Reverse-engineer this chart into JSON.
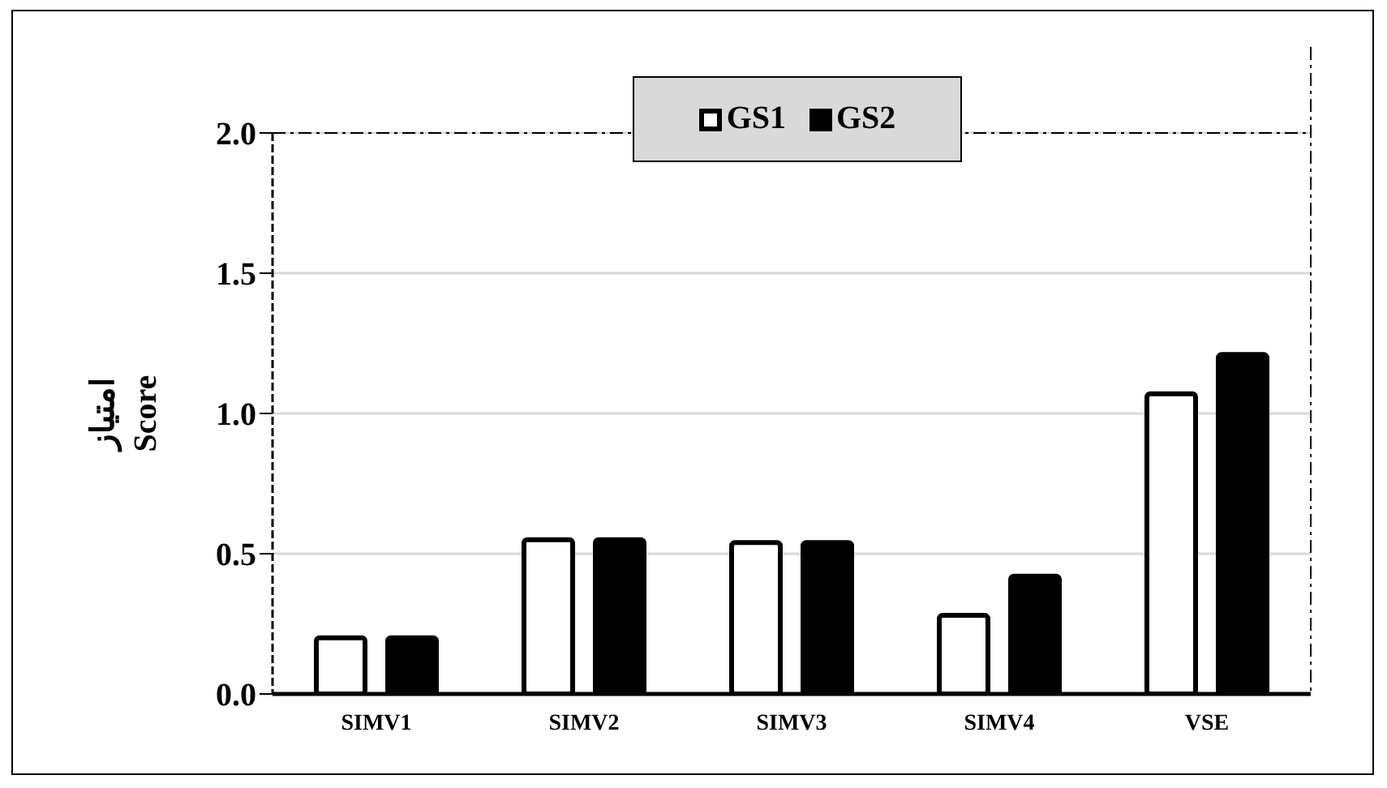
{
  "chart_data": {
    "type": "bar",
    "ylabel": "امتیاز\nScore",
    "categories": [
      "SIMV1",
      "SIMV2",
      "SIMV3",
      "SIMV4",
      "VSE"
    ],
    "series": [
      {
        "name": "GS1",
        "color": "#ffffff",
        "values": [
          0.2,
          0.55,
          0.54,
          0.28,
          1.07
        ]
      },
      {
        "name": "GS2",
        "color": "#000000",
        "values": [
          0.2,
          0.55,
          0.54,
          0.42,
          1.21
        ]
      }
    ],
    "ylim": [
      0,
      2
    ],
    "yticks": [
      {
        "value": 0,
        "label": "0.0"
      },
      {
        "value": 0.5,
        "label": "0.5"
      },
      {
        "value": 1,
        "label": "1.0"
      },
      {
        "value": 1.5,
        "label": "1.5"
      },
      {
        "value": 2,
        "label": "2.0"
      }
    ],
    "grid": "y",
    "legend": "top"
  }
}
